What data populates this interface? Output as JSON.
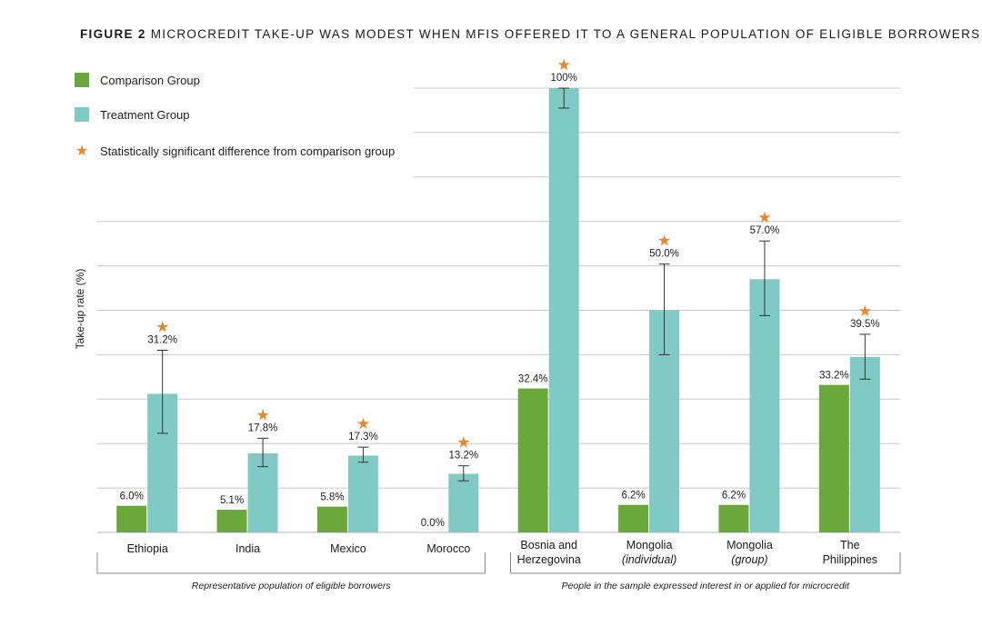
{
  "title": {
    "prefix": "FIGURE 2",
    "text": "MICROCREDIT TAKE-UP WAS MODEST WHEN MFIs OFFERED IT TO A GENERAL POPULATION OF ELIGIBLE BORROWERS"
  },
  "legend": [
    {
      "label": "Comparison Group",
      "color": "#6aa83c",
      "icon": "square"
    },
    {
      "label": "Treatment Group",
      "color": "#80cac6",
      "icon": "square"
    },
    {
      "label": "Statistically significant difference from comparison group",
      "color": "#e8862a",
      "icon": "star-icon"
    }
  ],
  "chart_data": {
    "type": "bar",
    "ylabel": "Take-up rate (%)",
    "xlabel": "",
    "ylim": [
      0,
      100
    ],
    "grid": true,
    "categories": [
      [
        "Ethiopia"
      ],
      [
        "India"
      ],
      [
        "Mexico"
      ],
      [
        "Morocco"
      ],
      [
        "Bosnia and",
        "Herzegovina"
      ],
      [
        "Mongolia",
        "(individual)"
      ],
      [
        "Mongolia",
        "(group)"
      ],
      [
        "The",
        "Philippines"
      ]
    ],
    "italic_second_line": [
      false,
      false,
      false,
      false,
      false,
      true,
      true,
      false
    ],
    "series": [
      {
        "name": "Comparison Group",
        "color": "#6aa83c",
        "values": [
          6.0,
          5.1,
          5.8,
          0.0,
          32.4,
          6.2,
          6.2,
          33.2
        ],
        "labels": [
          "6.0%",
          "5.1%",
          "5.8%",
          "0.0%",
          "32.4%",
          "6.2%",
          "6.2%",
          "33.2%"
        ]
      },
      {
        "name": "Treatment Group",
        "color": "#80cac6",
        "values": [
          31.2,
          17.8,
          17.3,
          13.2,
          100,
          50.0,
          57.0,
          39.5
        ],
        "labels": [
          "31.2%",
          "17.8%",
          "17.3%",
          "13.2%",
          "100%",
          "50.0%",
          "57.0%",
          "39.5%"
        ],
        "error_low": [
          22.3,
          14.8,
          15.8,
          11.6,
          95.5,
          40.0,
          48.8,
          34.5
        ],
        "error_high": [
          41.0,
          21.2,
          19.2,
          15.0,
          100,
          60.4,
          65.6,
          44.6
        ],
        "significant": [
          true,
          true,
          true,
          true,
          true,
          true,
          true,
          true
        ]
      }
    ],
    "groups": [
      {
        "label": "Representative population of eligible borrowers",
        "from": 0,
        "to": 3
      },
      {
        "label": "People in the sample expressed interest in or applied for microcredit",
        "from": 4,
        "to": 7
      }
    ]
  }
}
